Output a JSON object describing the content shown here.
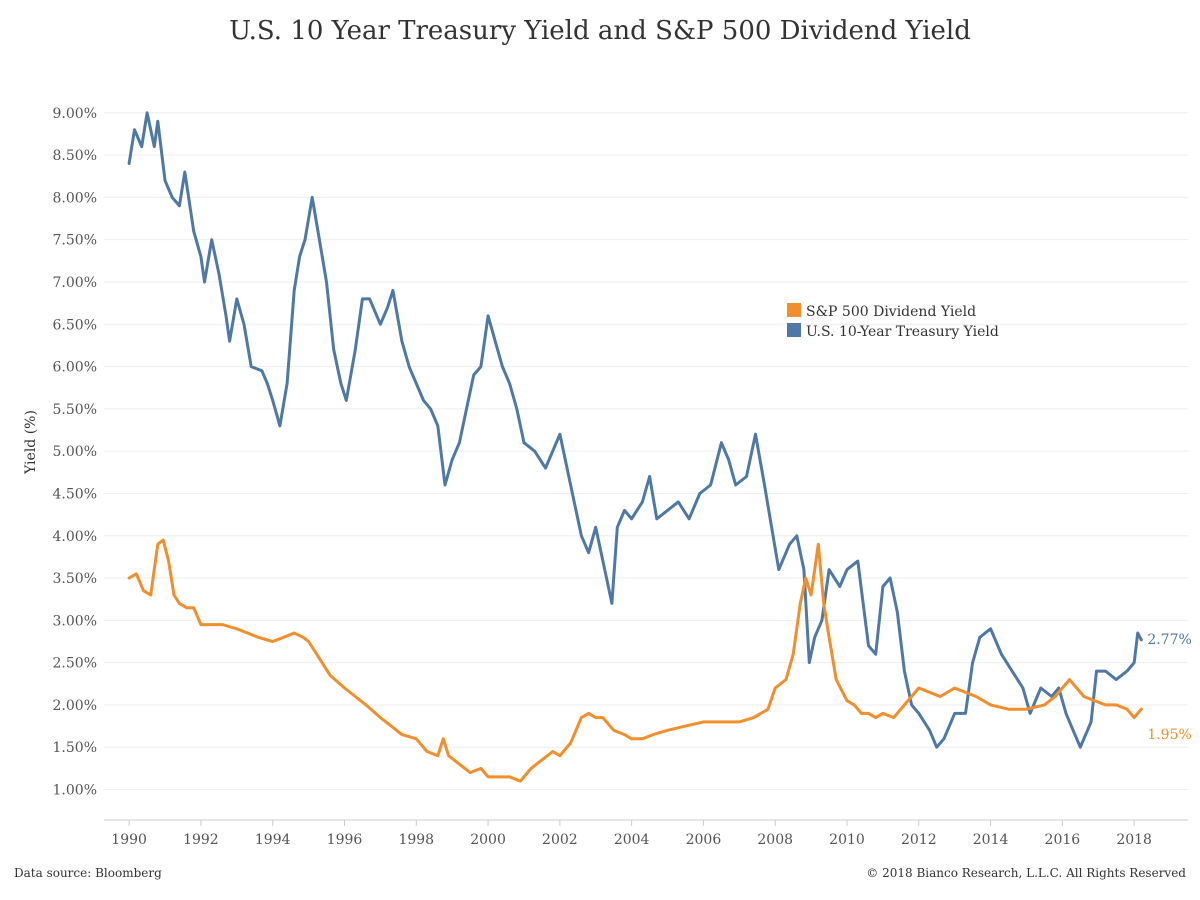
{
  "colors": {
    "dividend": "#f28e2b",
    "treasury": "#4e79a7",
    "grid": "#eeeeee",
    "axis": "#cccccc"
  },
  "footer": {
    "source": "Data source: Bloomberg",
    "copyright": "© 2018 Bianco Research, L.L.C. All Rights Reserved"
  },
  "chart_data": {
    "type": "line",
    "title": "U.S. 10 Year Treasury Yield and S&P 500 Dividend Yield",
    "xlabel": "",
    "ylabel": "Yield (%)",
    "xlim": [
      1989.3,
      2019.5
    ],
    "ylim": [
      0.64,
      9.6
    ],
    "grid": "horizontal",
    "legend_placement": "center-right",
    "x_ticks": [
      1990,
      1992,
      1994,
      1996,
      1998,
      2000,
      2002,
      2004,
      2006,
      2008,
      2010,
      2012,
      2014,
      2016,
      2018
    ],
    "x_tick_labels": [
      "1990",
      "1992",
      "1994",
      "1996",
      "1998",
      "2000",
      "2002",
      "2004",
      "2006",
      "2008",
      "2010",
      "2012",
      "2014",
      "2016",
      "2018"
    ],
    "y_ticks": [
      1.0,
      1.5,
      2.0,
      2.5,
      3.0,
      3.5,
      4.0,
      4.5,
      5.0,
      5.5,
      6.0,
      6.5,
      7.0,
      7.5,
      8.0,
      8.5,
      9.0
    ],
    "y_tick_labels": [
      "1.00%",
      "1.50%",
      "2.00%",
      "2.50%",
      "3.00%",
      "3.50%",
      "4.00%",
      "4.50%",
      "5.00%",
      "5.50%",
      "6.00%",
      "6.50%",
      "7.00%",
      "7.50%",
      "8.00%",
      "8.50%",
      "9.00%"
    ],
    "series": [
      {
        "name": "S&P 500 Dividend Yield",
        "color": "#f28e2b",
        "end_label": "1.95%",
        "x": [
          1990.0,
          1990.2,
          1990.4,
          1990.6,
          1990.8,
          1990.95,
          1991.1,
          1991.25,
          1991.4,
          1991.6,
          1991.8,
          1992.0,
          1992.3,
          1992.6,
          1993.0,
          1993.3,
          1993.6,
          1994.0,
          1994.3,
          1994.6,
          1994.85,
          1995.0,
          1995.3,
          1995.6,
          1996.0,
          1996.3,
          1996.6,
          1997.0,
          1997.3,
          1997.6,
          1998.0,
          1998.3,
          1998.6,
          1998.75,
          1998.9,
          1999.2,
          1999.5,
          1999.8,
          2000.0,
          2000.3,
          2000.6,
          2000.9,
          2001.2,
          2001.5,
          2001.8,
          2002.0,
          2002.3,
          2002.6,
          2002.8,
          2003.0,
          2003.2,
          2003.5,
          2003.8,
          2004.0,
          2004.3,
          2004.6,
          2005.0,
          2005.5,
          2006.0,
          2006.5,
          2007.0,
          2007.4,
          2007.8,
          2008.0,
          2008.3,
          2008.5,
          2008.7,
          2008.85,
          2009.0,
          2009.2,
          2009.35,
          2009.5,
          2009.7,
          2010.0,
          2010.2,
          2010.4,
          2010.6,
          2010.8,
          2011.0,
          2011.3,
          2011.6,
          2011.8,
          2012.0,
          2012.3,
          2012.6,
          2013.0,
          2013.3,
          2013.6,
          2014.0,
          2014.5,
          2015.0,
          2015.5,
          2015.8,
          2016.0,
          2016.2,
          2016.4,
          2016.6,
          2016.9,
          2017.2,
          2017.5,
          2017.8,
          2018.0,
          2018.1,
          2018.2
        ],
        "y": [
          3.5,
          3.55,
          3.35,
          3.3,
          3.9,
          3.95,
          3.7,
          3.3,
          3.2,
          3.15,
          3.15,
          2.95,
          2.95,
          2.95,
          2.9,
          2.85,
          2.8,
          2.75,
          2.8,
          2.85,
          2.8,
          2.75,
          2.55,
          2.35,
          2.2,
          2.1,
          2.0,
          1.85,
          1.75,
          1.65,
          1.6,
          1.45,
          1.4,
          1.6,
          1.4,
          1.3,
          1.2,
          1.25,
          1.15,
          1.15,
          1.15,
          1.1,
          1.25,
          1.35,
          1.45,
          1.4,
          1.55,
          1.85,
          1.9,
          1.85,
          1.85,
          1.7,
          1.65,
          1.6,
          1.6,
          1.65,
          1.7,
          1.75,
          1.8,
          1.8,
          1.8,
          1.85,
          1.95,
          2.2,
          2.3,
          2.6,
          3.2,
          3.5,
          3.3,
          3.9,
          3.2,
          2.8,
          2.3,
          2.05,
          2.0,
          1.9,
          1.9,
          1.85,
          1.9,
          1.85,
          2.0,
          2.1,
          2.2,
          2.15,
          2.1,
          2.2,
          2.15,
          2.1,
          2.0,
          1.95,
          1.95,
          2.0,
          2.1,
          2.2,
          2.3,
          2.2,
          2.1,
          2.05,
          2.0,
          2.0,
          1.95,
          1.85,
          1.9,
          1.95
        ]
      },
      {
        "name": "U.S. 10-Year Treasury Yield",
        "color": "#4e79a7",
        "end_label": "2.77%",
        "x": [
          1990.0,
          1990.15,
          1990.35,
          1990.5,
          1990.7,
          1990.8,
          1991.0,
          1991.2,
          1991.4,
          1991.55,
          1991.8,
          1992.0,
          1992.1,
          1992.3,
          1992.5,
          1992.7,
          1992.8,
          1993.0,
          1993.2,
          1993.4,
          1993.7,
          1993.85,
          1994.0,
          1994.2,
          1994.4,
          1994.6,
          1994.75,
          1994.9,
          1995.1,
          1995.3,
          1995.5,
          1995.7,
          1995.9,
          1996.05,
          1996.3,
          1996.5,
          1996.7,
          1997.0,
          1997.2,
          1997.35,
          1997.6,
          1997.8,
          1998.0,
          1998.2,
          1998.4,
          1998.6,
          1998.8,
          1999.0,
          1999.2,
          1999.4,
          1999.6,
          1999.8,
          2000.0,
          2000.2,
          2000.4,
          2000.6,
          2000.8,
          2001.0,
          2001.3,
          2001.6,
          2001.8,
          2002.0,
          2002.3,
          2002.6,
          2002.8,
          2003.0,
          2003.2,
          2003.45,
          2003.6,
          2003.8,
          2004.0,
          2004.3,
          2004.5,
          2004.7,
          2005.0,
          2005.3,
          2005.6,
          2005.9,
          2006.2,
          2006.5,
          2006.7,
          2006.9,
          2007.2,
          2007.45,
          2007.7,
          2007.9,
          2008.1,
          2008.4,
          2008.6,
          2008.8,
          2008.95,
          2009.1,
          2009.3,
          2009.5,
          2009.8,
          2010.0,
          2010.3,
          2010.6,
          2010.8,
          2011.0,
          2011.2,
          2011.4,
          2011.6,
          2011.8,
          2012.0,
          2012.3,
          2012.5,
          2012.7,
          2013.0,
          2013.3,
          2013.5,
          2013.7,
          2014.0,
          2014.3,
          2014.6,
          2014.9,
          2015.1,
          2015.4,
          2015.7,
          2015.9,
          2016.1,
          2016.3,
          2016.5,
          2016.8,
          2016.95,
          2017.2,
          2017.5,
          2017.8,
          2018.0,
          2018.1,
          2018.2
        ],
        "y": [
          8.4,
          8.8,
          8.6,
          9.0,
          8.6,
          8.9,
          8.2,
          8.0,
          7.9,
          8.3,
          7.6,
          7.3,
          7.0,
          7.5,
          7.1,
          6.6,
          6.3,
          6.8,
          6.5,
          6.0,
          5.95,
          5.8,
          5.6,
          5.3,
          5.8,
          6.9,
          7.3,
          7.5,
          8.0,
          7.5,
          7.0,
          6.2,
          5.8,
          5.6,
          6.2,
          6.8,
          6.8,
          6.5,
          6.7,
          6.9,
          6.3,
          6.0,
          5.8,
          5.6,
          5.5,
          5.3,
          4.6,
          4.9,
          5.1,
          5.5,
          5.9,
          6.0,
          6.6,
          6.3,
          6.0,
          5.8,
          5.5,
          5.1,
          5.0,
          4.8,
          5.0,
          5.2,
          4.6,
          4.0,
          3.8,
          4.1,
          3.7,
          3.2,
          4.1,
          4.3,
          4.2,
          4.4,
          4.7,
          4.2,
          4.3,
          4.4,
          4.2,
          4.5,
          4.6,
          5.1,
          4.9,
          4.6,
          4.7,
          5.2,
          4.6,
          4.1,
          3.6,
          3.9,
          4.0,
          3.6,
          2.5,
          2.8,
          3.0,
          3.6,
          3.4,
          3.6,
          3.7,
          2.7,
          2.6,
          3.4,
          3.5,
          3.1,
          2.4,
          2.0,
          1.9,
          1.7,
          1.5,
          1.6,
          1.9,
          1.9,
          2.5,
          2.8,
          2.9,
          2.6,
          2.4,
          2.2,
          1.9,
          2.2,
          2.1,
          2.2,
          1.9,
          1.7,
          1.5,
          1.8,
          2.4,
          2.4,
          2.3,
          2.4,
          2.5,
          2.85,
          2.77
        ]
      }
    ]
  }
}
